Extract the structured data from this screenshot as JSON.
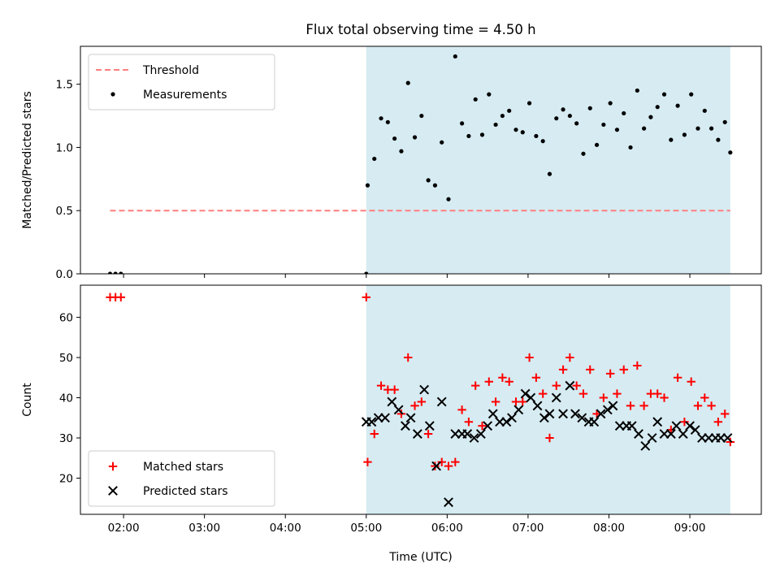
{
  "title": "Flux total observing time = 4.50 h",
  "colors": {
    "threshold": "#ff7f7f",
    "measurements": "#000000",
    "matched": "#ff0000",
    "predicted": "#000000",
    "shade": "#add8e6"
  },
  "chart_data": [
    {
      "type": "scatter",
      "ylabel": "Matched/Predicted stars",
      "xlim": [
        "01:28",
        "09:53"
      ],
      "ylim": [
        0,
        1.8
      ],
      "x_tick_labels": [
        "02:00",
        "03:00",
        "04:00",
        "05:00",
        "06:00",
        "07:00",
        "08:00",
        "09:00"
      ],
      "y_ticks": [
        0.0,
        0.5,
        1.0,
        1.5
      ],
      "y_tick_labels": [
        "0.0",
        "0.5",
        "1.0",
        "1.5"
      ],
      "shaded_interval": [
        "05:00",
        "09:30"
      ],
      "legend_position": "upper left",
      "threshold": {
        "name": "Threshold",
        "value": 0.5,
        "x": [
          "01:50",
          "09:30"
        ]
      },
      "series": [
        {
          "name": "Measurements",
          "marker": "dot",
          "x": [
            "01:50",
            "01:54",
            "01:58",
            "05:00",
            "05:01",
            "05:06",
            "05:11",
            "05:16",
            "05:21",
            "05:26",
            "05:31",
            "05:36",
            "05:41",
            "05:46",
            "05:51",
            "05:56",
            "06:01",
            "06:06",
            "06:11",
            "06:16",
            "06:21",
            "06:26",
            "06:31",
            "06:36",
            "06:41",
            "06:46",
            "06:51",
            "06:56",
            "07:01",
            "07:06",
            "07:11",
            "07:16",
            "07:21",
            "07:26",
            "07:31",
            "07:36",
            "07:41",
            "07:46",
            "07:51",
            "07:56",
            "08:01",
            "08:06",
            "08:11",
            "08:16",
            "08:21",
            "08:26",
            "08:31",
            "08:36",
            "08:41",
            "08:46",
            "08:51",
            "08:56",
            "09:01",
            "09:06",
            "09:11",
            "09:16",
            "09:21",
            "09:26",
            "09:30"
          ],
          "values": [
            0.0,
            0.0,
            0.0,
            0.0,
            0.7,
            0.91,
            1.23,
            1.2,
            1.07,
            0.97,
            1.51,
            1.08,
            1.25,
            0.74,
            0.7,
            1.04,
            0.59,
            1.72,
            1.19,
            1.09,
            1.38,
            1.1,
            1.42,
            1.18,
            1.25,
            1.29,
            1.14,
            1.12,
            1.35,
            1.09,
            1.05,
            0.79,
            1.23,
            1.3,
            1.25,
            1.19,
            0.95,
            1.31,
            1.02,
            1.18,
            1.35,
            1.14,
            1.27,
            1.0,
            1.45,
            1.15,
            1.24,
            1.32,
            1.42,
            1.06,
            1.33,
            1.1,
            1.42,
            1.15,
            1.29,
            1.15,
            1.06,
            1.2,
            0.96
          ]
        }
      ]
    },
    {
      "type": "scatter",
      "xlabel": "Time (UTC)",
      "ylabel": "Count",
      "xlim": [
        "01:28",
        "09:53"
      ],
      "ylim": [
        11,
        68
      ],
      "x_tick_labels": [
        "02:00",
        "03:00",
        "04:00",
        "05:00",
        "06:00",
        "07:00",
        "08:00",
        "09:00"
      ],
      "y_ticks": [
        20,
        30,
        40,
        50,
        60
      ],
      "y_tick_labels": [
        "20",
        "30",
        "40",
        "50",
        "60"
      ],
      "shaded_interval": [
        "05:00",
        "09:30"
      ],
      "legend_position": "lower left",
      "series": [
        {
          "name": "Matched stars",
          "marker": "plus",
          "x": [
            "01:50",
            "01:54",
            "01:58",
            "05:00",
            "05:01",
            "05:06",
            "05:11",
            "05:16",
            "05:21",
            "05:26",
            "05:31",
            "05:36",
            "05:41",
            "05:46",
            "05:51",
            "05:56",
            "06:01",
            "06:06",
            "06:11",
            "06:16",
            "06:21",
            "06:26",
            "06:31",
            "06:36",
            "06:41",
            "06:46",
            "06:51",
            "06:56",
            "07:01",
            "07:06",
            "07:11",
            "07:16",
            "07:21",
            "07:26",
            "07:31",
            "07:36",
            "07:41",
            "07:46",
            "07:51",
            "07:56",
            "08:01",
            "08:06",
            "08:11",
            "08:16",
            "08:21",
            "08:26",
            "08:31",
            "08:36",
            "08:41",
            "08:46",
            "08:51",
            "08:56",
            "09:01",
            "09:06",
            "09:11",
            "09:16",
            "09:21",
            "09:26",
            "09:30"
          ],
          "values": [
            65,
            65,
            65,
            65,
            24,
            31,
            43,
            42,
            42,
            36,
            50,
            38,
            39,
            31,
            23,
            24,
            23,
            24,
            37,
            34,
            43,
            33,
            44,
            39,
            45,
            44,
            39,
            39,
            50,
            45,
            41,
            30,
            43,
            47,
            50,
            43,
            41,
            47,
            36,
            40,
            46,
            41,
            47,
            38,
            48,
            38,
            41,
            41,
            40,
            32,
            45,
            34,
            44,
            38,
            40,
            38,
            34,
            36,
            29
          ]
        },
        {
          "name": "Predicted stars",
          "marker": "x",
          "x": [
            "05:00",
            "05:04",
            "05:09",
            "05:14",
            "05:19",
            "05:24",
            "05:29",
            "05:33",
            "05:38",
            "05:43",
            "05:47",
            "05:52",
            "05:56",
            "06:01",
            "06:06",
            "06:11",
            "06:15",
            "06:20",
            "06:25",
            "06:30",
            "06:34",
            "06:39",
            "06:44",
            "06:48",
            "06:53",
            "06:58",
            "07:02",
            "07:07",
            "07:12",
            "07:16",
            "07:21",
            "07:26",
            "07:31",
            "07:35",
            "07:40",
            "07:45",
            "07:49",
            "07:54",
            "07:59",
            "08:03",
            "08:08",
            "08:13",
            "08:17",
            "08:22",
            "08:27",
            "08:32",
            "08:36",
            "08:41",
            "08:46",
            "08:50",
            "08:55",
            "09:00",
            "09:04",
            "09:09",
            "09:14",
            "09:19",
            "09:23",
            "09:28"
          ],
          "values": [
            34,
            34,
            35,
            35,
            39,
            37,
            33,
            35,
            31,
            42,
            33,
            23,
            39,
            14,
            31,
            31,
            31,
            30,
            31,
            33,
            36,
            34,
            34,
            35,
            37,
            41,
            40,
            38,
            35,
            36,
            40,
            36,
            43,
            36,
            35,
            34,
            34,
            36,
            37,
            38,
            33,
            33,
            33,
            31,
            28,
            30,
            34,
            31,
            31,
            33,
            31,
            33,
            32,
            30,
            30,
            30,
            30,
            30
          ]
        }
      ]
    }
  ]
}
